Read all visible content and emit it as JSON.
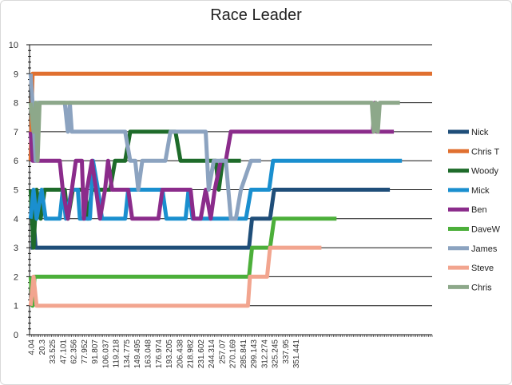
{
  "chart_data": {
    "type": "line",
    "title": "Race Leader",
    "xlabel": "",
    "ylabel": "",
    "ylim": [
      0,
      10
    ],
    "xlim": [
      0,
      400
    ],
    "y_ticks": [
      "0",
      "1",
      "2",
      "3",
      "4",
      "5",
      "6",
      "7",
      "8",
      "9",
      "10"
    ],
    "x_ticks": [
      "4.04",
      "20.3",
      "33.525",
      "47.101",
      "62.356",
      "77.952",
      "91.807",
      "106.037",
      "119.218",
      "134.775",
      "149.495",
      "163.048",
      "176.974",
      "193.205",
      "206.438",
      "218.982",
      "231.602",
      "244.314",
      "257.07",
      "270.169",
      "285.841",
      "299.143",
      "312.274",
      "325.245",
      "337.95",
      "351.441"
    ],
    "grid": "horizontal",
    "legend": "right",
    "series": [
      {
        "name": "Nick",
        "color": "#1f4e79",
        "points": [
          [
            1,
            3
          ],
          [
            3,
            3
          ],
          [
            4,
            4
          ],
          [
            6,
            3
          ],
          [
            8,
            3
          ],
          [
            10,
            3
          ],
          [
            218,
            3
          ],
          [
            221,
            4
          ],
          [
            239,
            4
          ],
          [
            243,
            5
          ],
          [
            358,
            5
          ]
        ]
      },
      {
        "name": "Chris T",
        "color": "#e07030",
        "points": [
          [
            1,
            6
          ],
          [
            3,
            9
          ],
          [
            400,
            9
          ]
        ]
      },
      {
        "name": "Woody",
        "color": "#1e6b2a",
        "points": [
          [
            1,
            5
          ],
          [
            4,
            3
          ],
          [
            7,
            5
          ],
          [
            11,
            4
          ],
          [
            15,
            5
          ],
          [
            35,
            5
          ],
          [
            38,
            4
          ],
          [
            43,
            5
          ],
          [
            55,
            5
          ],
          [
            58,
            4
          ],
          [
            62,
            5
          ],
          [
            80,
            5
          ],
          [
            85,
            6
          ],
          [
            95,
            6
          ],
          [
            100,
            7
          ],
          [
            145,
            7
          ],
          [
            150,
            6
          ],
          [
            185,
            6
          ],
          [
            188,
            5
          ],
          [
            192,
            6
          ],
          [
            210,
            6
          ]
        ]
      },
      {
        "name": "Mick",
        "color": "#1a8fcf",
        "points": [
          [
            1,
            4
          ],
          [
            4,
            5
          ],
          [
            7,
            4
          ],
          [
            12,
            5
          ],
          [
            16,
            4
          ],
          [
            30,
            4
          ],
          [
            33,
            5
          ],
          [
            36,
            4
          ],
          [
            42,
            5
          ],
          [
            48,
            5
          ],
          [
            50,
            4
          ],
          [
            60,
            4
          ],
          [
            63,
            6
          ],
          [
            68,
            5
          ],
          [
            72,
            4
          ],
          [
            95,
            4
          ],
          [
            98,
            5
          ],
          [
            132,
            5
          ],
          [
            136,
            4
          ],
          [
            155,
            4
          ],
          [
            158,
            5
          ],
          [
            162,
            4
          ],
          [
            215,
            4
          ],
          [
            220,
            5
          ],
          [
            238,
            5
          ],
          [
            242,
            6
          ],
          [
            370,
            6
          ]
        ]
      },
      {
        "name": "Ben",
        "color": "#8b2c8b",
        "points": [
          [
            1,
            7
          ],
          [
            3,
            6
          ],
          [
            6,
            6
          ],
          [
            30,
            6
          ],
          [
            33,
            5
          ],
          [
            38,
            4
          ],
          [
            42,
            5
          ],
          [
            46,
            6
          ],
          [
            52,
            6
          ],
          [
            54,
            4
          ],
          [
            57,
            5
          ],
          [
            62,
            6
          ],
          [
            66,
            5
          ],
          [
            70,
            4
          ],
          [
            75,
            5
          ],
          [
            78,
            6
          ],
          [
            82,
            5
          ],
          [
            98,
            5
          ],
          [
            102,
            4
          ],
          [
            128,
            4
          ],
          [
            132,
            5
          ],
          [
            160,
            5
          ],
          [
            163,
            4
          ],
          [
            170,
            4
          ],
          [
            175,
            5
          ],
          [
            180,
            4
          ],
          [
            184,
            5
          ],
          [
            190,
            6
          ],
          [
            195,
            6
          ],
          [
            200,
            7
          ],
          [
            341,
            7
          ],
          [
            343,
            8
          ],
          [
            345,
            7
          ],
          [
            362,
            7
          ]
        ]
      },
      {
        "name": "DaveW",
        "color": "#4caf3a",
        "points": [
          [
            1,
            2
          ],
          [
            3,
            1
          ],
          [
            5,
            2
          ],
          [
            218,
            2
          ],
          [
            221,
            3
          ],
          [
            239,
            3
          ],
          [
            243,
            4
          ],
          [
            305,
            4
          ]
        ]
      },
      {
        "name": "James",
        "color": "#8ca3c0",
        "points": [
          [
            1,
            9
          ],
          [
            3,
            8
          ],
          [
            6,
            6
          ],
          [
            8,
            8
          ],
          [
            35,
            8
          ],
          [
            38,
            7
          ],
          [
            40,
            8
          ],
          [
            42,
            7
          ],
          [
            95,
            7
          ],
          [
            100,
            6
          ],
          [
            105,
            6
          ],
          [
            108,
            5
          ],
          [
            112,
            6
          ],
          [
            135,
            6
          ],
          [
            140,
            7
          ],
          [
            175,
            7
          ],
          [
            178,
            5
          ],
          [
            183,
            6
          ],
          [
            195,
            6
          ],
          [
            200,
            4
          ],
          [
            205,
            4
          ],
          [
            210,
            5
          ],
          [
            220,
            6
          ],
          [
            230,
            6
          ]
        ]
      },
      {
        "name": "Steve",
        "color": "#f2a58f",
        "points": [
          [
            1,
            1
          ],
          [
            4,
            2
          ],
          [
            7,
            1
          ],
          [
            217,
            1
          ],
          [
            219,
            2
          ],
          [
            236,
            2
          ],
          [
            239,
            3
          ],
          [
            290,
            3
          ]
        ]
      },
      {
        "name": "Chris",
        "color": "#8da88a",
        "points": [
          [
            1,
            8
          ],
          [
            4,
            7
          ],
          [
            6,
            8
          ],
          [
            8,
            6
          ],
          [
            10,
            8
          ],
          [
            340,
            8
          ],
          [
            342,
            7
          ],
          [
            344,
            8
          ],
          [
            346,
            7
          ],
          [
            348,
            8
          ],
          [
            368,
            8
          ]
        ]
      }
    ]
  }
}
